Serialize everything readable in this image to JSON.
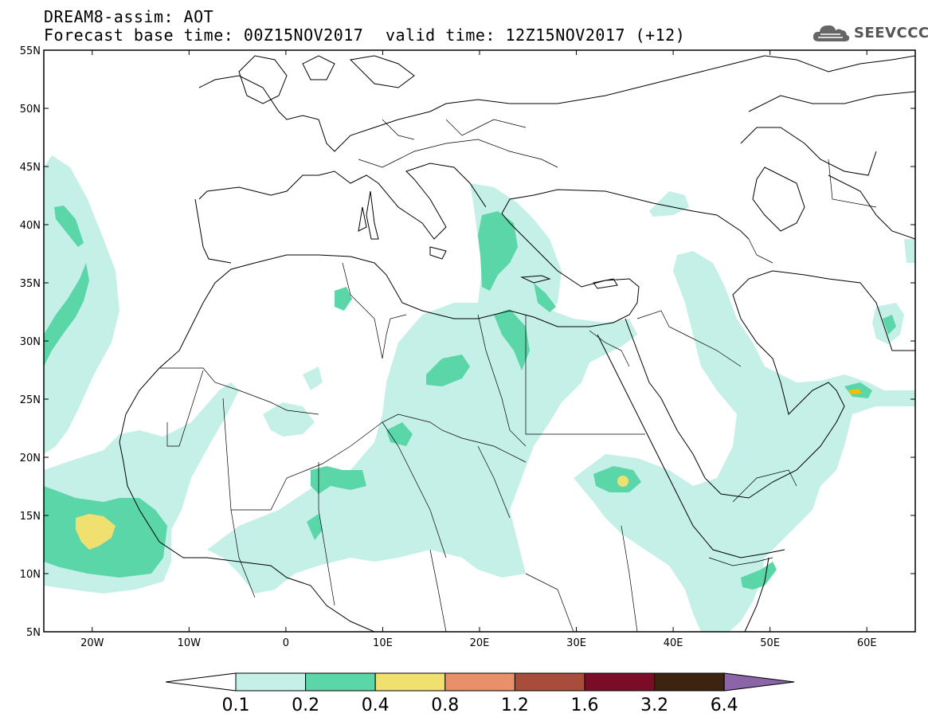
{
  "header": {
    "title_line1": "DREAM8-assim: AOT",
    "title_line2": "Forecast base time: 00Z15NOV2017",
    "valid_time": "valid time: 12Z15NOV2017 (+12)",
    "logo_text": "SEEVCCC",
    "logo_icon": "cloud-icon"
  },
  "map": {
    "lon_range": [
      -25,
      65
    ],
    "lat_range": [
      5,
      55
    ],
    "lat_labels": [
      {
        "lat": 55,
        "text": "55N"
      },
      {
        "lat": 50,
        "text": "50N"
      },
      {
        "lat": 45,
        "text": "45N"
      },
      {
        "lat": 40,
        "text": "40N"
      },
      {
        "lat": 35,
        "text": "35N"
      },
      {
        "lat": 30,
        "text": "30N"
      },
      {
        "lat": 25,
        "text": "25N"
      },
      {
        "lat": 20,
        "text": "20N"
      },
      {
        "lat": 15,
        "text": "15N"
      },
      {
        "lat": 10,
        "text": "10N"
      },
      {
        "lat": 5,
        "text": "5N"
      }
    ],
    "lon_labels": [
      {
        "lon": -20,
        "text": "20W"
      },
      {
        "lon": -10,
        "text": "10W"
      },
      {
        "lon": 0,
        "text": "0"
      },
      {
        "lon": 10,
        "text": "10E"
      },
      {
        "lon": 20,
        "text": "20E"
      },
      {
        "lon": 30,
        "text": "30E"
      },
      {
        "lon": 40,
        "text": "40E"
      },
      {
        "lon": 50,
        "text": "50E"
      },
      {
        "lon": 60,
        "text": "60E"
      }
    ]
  },
  "colorbar": {
    "levels": [
      "0.1",
      "0.2",
      "0.4",
      "0.8",
      "1.2",
      "1.6",
      "3.2",
      "6.4"
    ],
    "colors": [
      "#ffffff",
      "#c4f0e8",
      "#5ad6a8",
      "#f0e070",
      "#e8906a",
      "#a84c3c",
      "#7a0c28",
      "#3c2410",
      "#8c64a8"
    ]
  },
  "fields": {
    "low_color": "#c4f0e8",
    "mid_color": "#5ad6a8",
    "high_color": "#f0e070",
    "top_color": "#f0c000"
  }
}
